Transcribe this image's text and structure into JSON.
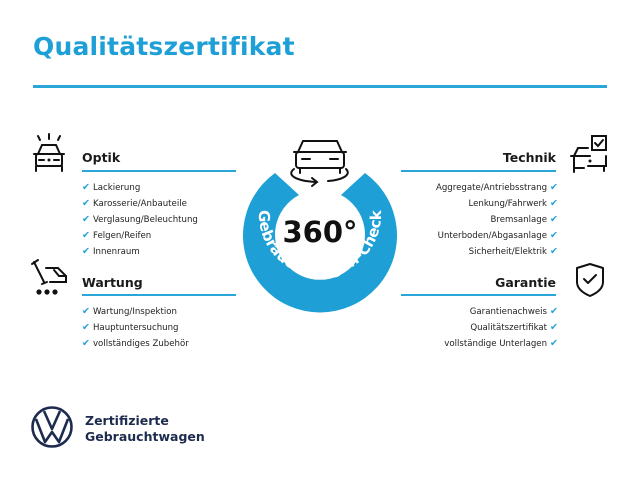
{
  "title": "Qualitätszertifikat",
  "badge": {
    "value": "360°",
    "ring_text": "Gebrauchtwagen-Check",
    "color": "#1ea0d6"
  },
  "sections": {
    "optik": {
      "title": "Optik",
      "icon": "car-lights-icon",
      "items": [
        "Lackierung",
        "Karosserie/Anbauteile",
        "Verglasung/Beleuchtung",
        "Felgen/Reifen",
        "Innenraum"
      ]
    },
    "wartung": {
      "title": "Wartung",
      "icon": "service-tools-icon",
      "items": [
        "Wartung/Inspektion",
        "Hauptuntersuchung",
        "vollständiges Zubehör"
      ]
    },
    "technik": {
      "title": "Technik",
      "icon": "car-checklist-icon",
      "items": [
        "Aggregate/Antriebsstrang",
        "Lenkung/Fahrwerk",
        "Bremsanlage",
        "Unterboden/Abgasanlage",
        "Sicherheit/Elektrik"
      ]
    },
    "garantie": {
      "title": "Garantie",
      "icon": "shield-check-icon",
      "items": [
        "Garantienachweis",
        "Qualitätszertifikat",
        "vollständige Unterlagen"
      ]
    }
  },
  "check_mark": "✔",
  "footer": {
    "line1": "Zertifizierte",
    "line2": "Gebrauchtwagen",
    "logo_text": "VW"
  },
  "colors": {
    "accent": "#1ea0d6",
    "navy": "#1d2b4f"
  }
}
